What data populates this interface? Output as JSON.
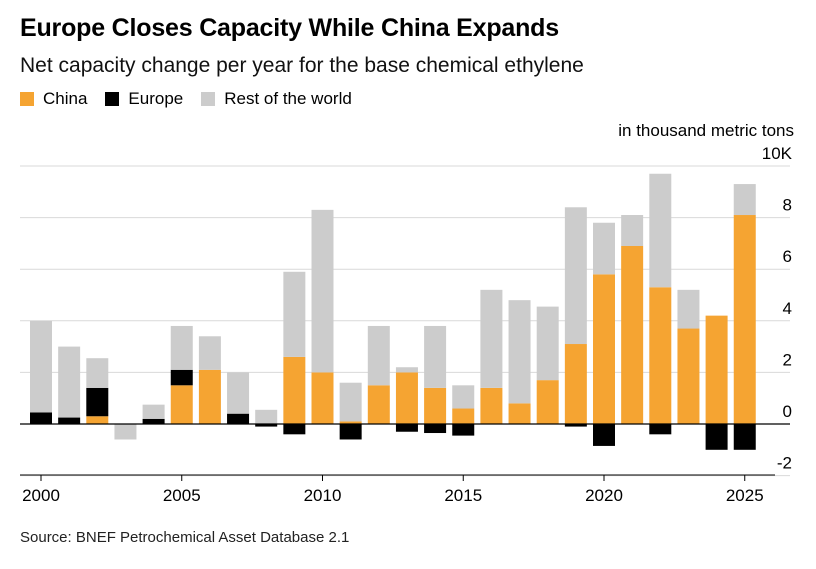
{
  "chart_data": {
    "type": "bar",
    "stacked": true,
    "title": "Europe Closes Capacity While China Expands",
    "subtitle": "Net capacity change per year for the base chemical ethylene",
    "unit_label": "in thousand metric tons",
    "source": "Source: BNEF Petrochemical Asset Database 2.1",
    "legend": [
      {
        "name": "China",
        "color": "#f5a432"
      },
      {
        "name": "Europe",
        "color": "#000000"
      },
      {
        "name": "Rest of the world",
        "color": "#cccccc"
      }
    ],
    "x": [
      2000,
      2001,
      2002,
      2003,
      2004,
      2005,
      2006,
      2007,
      2008,
      2009,
      2010,
      2011,
      2012,
      2013,
      2014,
      2015,
      2016,
      2017,
      2018,
      2019,
      2020,
      2021,
      2022,
      2023,
      2024,
      2025
    ],
    "x_tick_labels": [
      "2000",
      "2005",
      "2010",
      "2015",
      "2020",
      "2025"
    ],
    "y_tick_labels": [
      "10K",
      "8",
      "6",
      "4",
      "2",
      "0",
      "-2"
    ],
    "ylim": [
      -2,
      10
    ],
    "series": [
      {
        "name": "China",
        "color": "#f5a432",
        "values": [
          0,
          0,
          0.3,
          0,
          0,
          1.5,
          2.1,
          0,
          0,
          2.6,
          2.0,
          0.1,
          1.5,
          2.0,
          1.4,
          0.6,
          1.4,
          0.8,
          1.7,
          3.1,
          5.8,
          6.9,
          5.3,
          3.7,
          4.2,
          8.1
        ]
      },
      {
        "name": "Europe",
        "color": "#000000",
        "values": [
          0.45,
          0.25,
          1.1,
          0,
          0.2,
          0.6,
          0,
          0.4,
          -0.1,
          -0.4,
          0,
          -0.6,
          0,
          -0.3,
          -0.35,
          -0.45,
          0,
          0,
          0,
          -0.1,
          -0.85,
          0,
          -0.4,
          0,
          -1.0,
          -1.0
        ]
      },
      {
        "name": "Rest of the world",
        "color": "#cccccc",
        "values": [
          3.55,
          2.75,
          1.15,
          -0.6,
          0.55,
          1.7,
          1.3,
          1.6,
          0.55,
          3.3,
          6.3,
          1.5,
          2.3,
          0.2,
          2.4,
          0.9,
          3.8,
          4.0,
          2.85,
          5.3,
          2.0,
          1.2,
          4.4,
          1.5,
          0,
          1.2
        ]
      }
    ]
  }
}
